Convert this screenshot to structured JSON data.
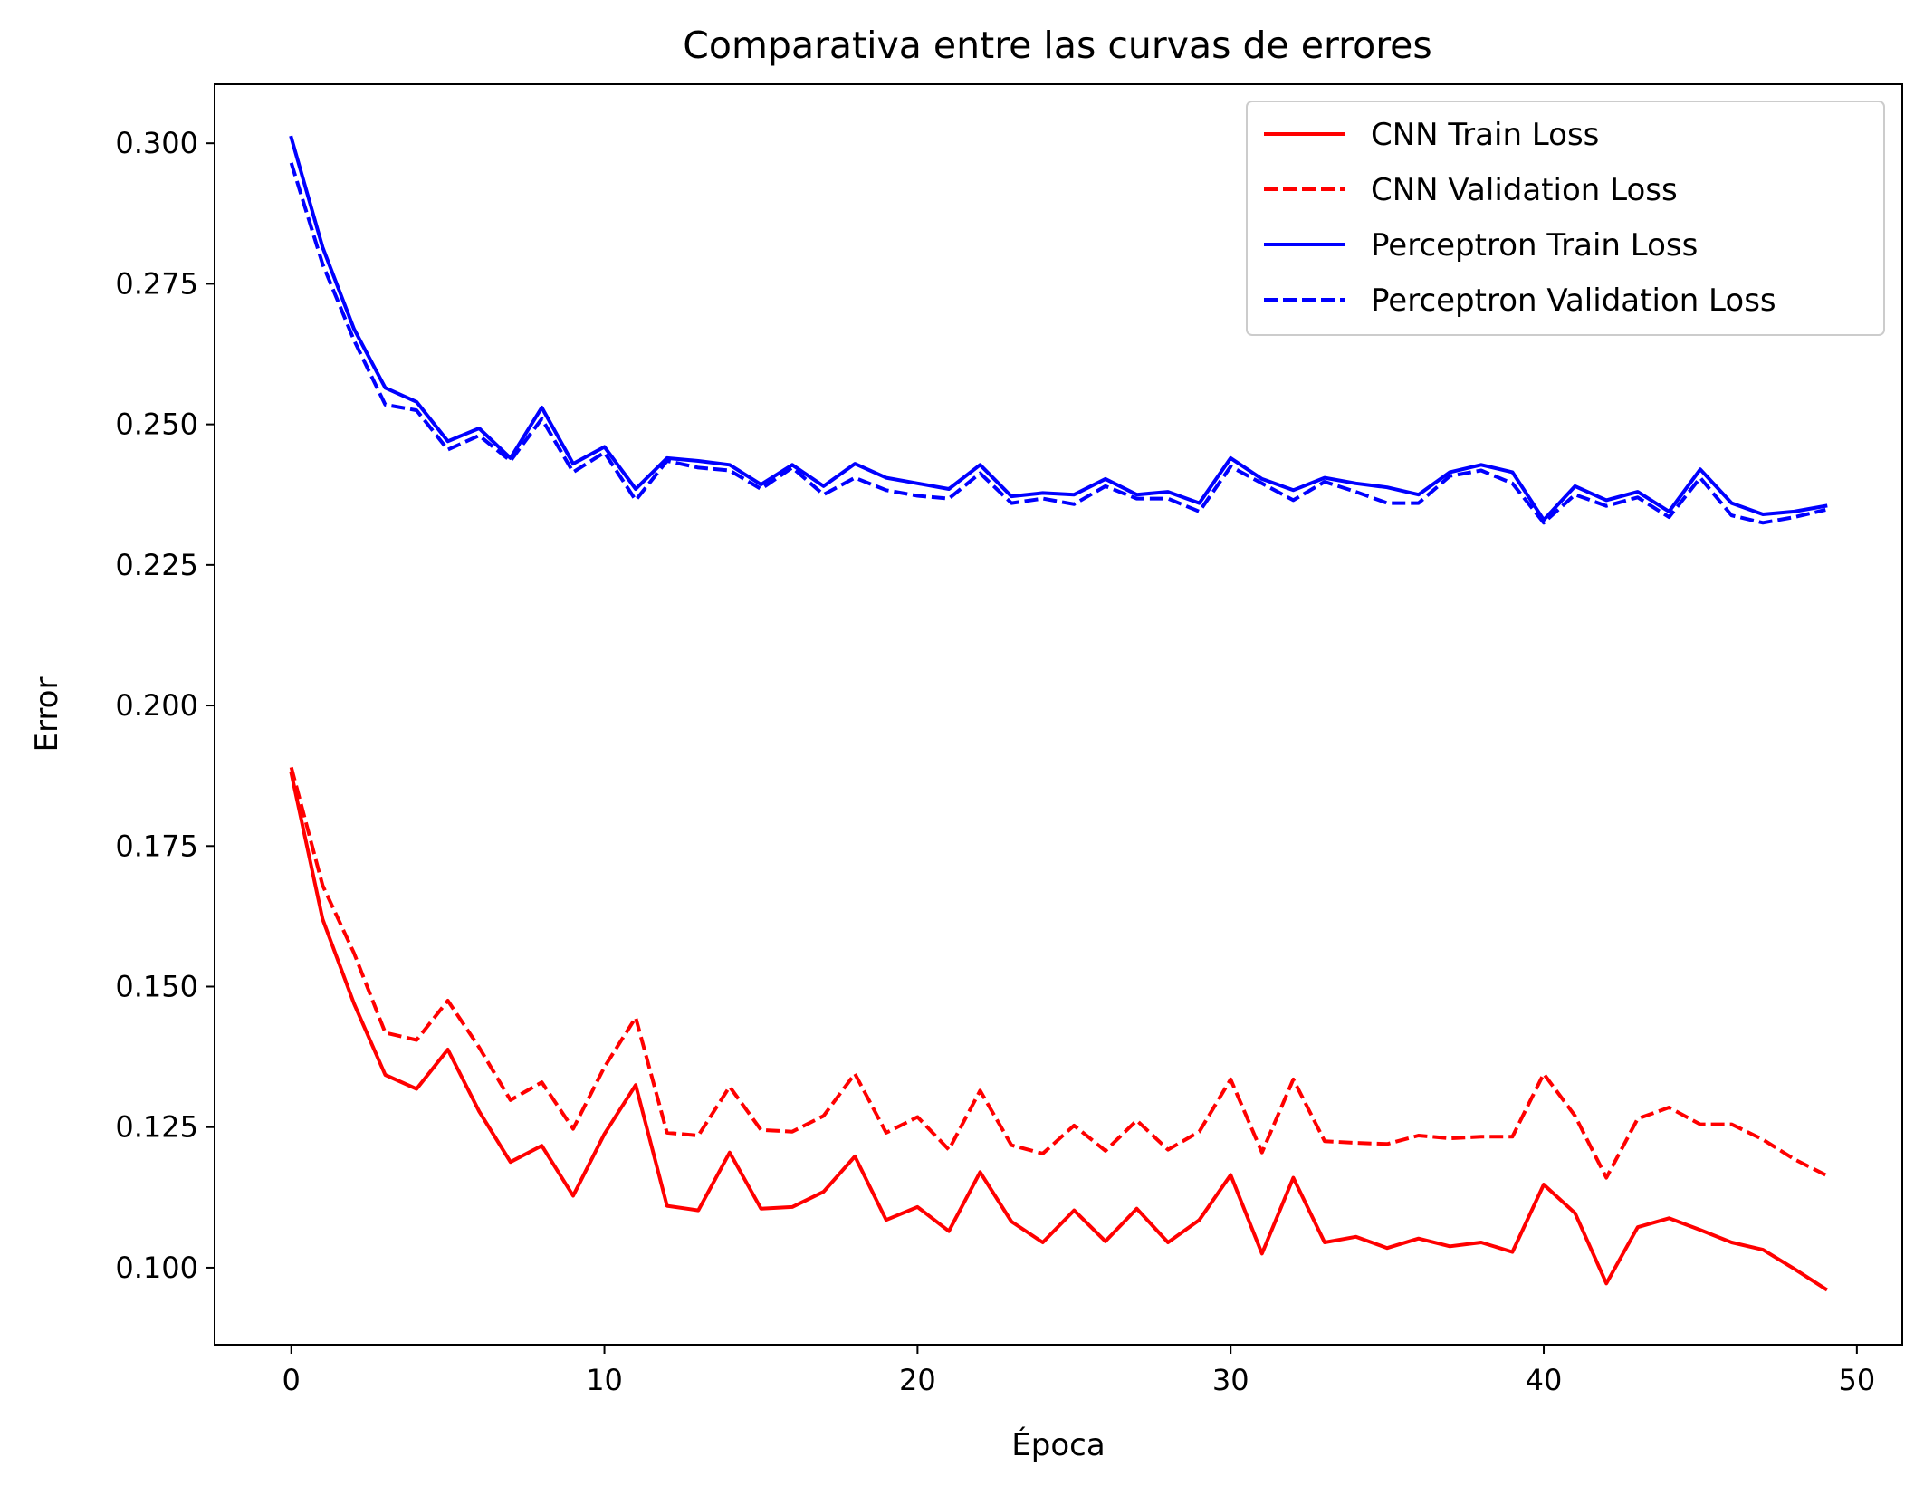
{
  "chart_data": {
    "type": "line",
    "title": "Comparativa entre las curvas de errores",
    "xlabel": "Época",
    "ylabel": "Error",
    "xlim": [
      -2.45,
      51.45
    ],
    "ylim": [
      0.0863,
      0.3105
    ],
    "xticks": [
      0,
      10,
      20,
      30,
      40,
      50
    ],
    "yticks": [
      0.1,
      0.125,
      0.15,
      0.175,
      0.2,
      0.225,
      0.25,
      0.275,
      0.3
    ],
    "ytick_labels": [
      "0.100",
      "0.125",
      "0.150",
      "0.175",
      "0.200",
      "0.225",
      "0.250",
      "0.275",
      "0.300"
    ],
    "grid": false,
    "legend_position": "top-right",
    "x": [
      0,
      1,
      2,
      3,
      4,
      5,
      6,
      7,
      8,
      9,
      10,
      11,
      12,
      13,
      14,
      15,
      16,
      17,
      18,
      19,
      20,
      21,
      22,
      23,
      24,
      25,
      26,
      27,
      28,
      29,
      30,
      31,
      32,
      33,
      34,
      35,
      36,
      37,
      38,
      39,
      40,
      41,
      42,
      43,
      44,
      45,
      46,
      47,
      48,
      49
    ],
    "series": [
      {
        "name": "CNN Train Loss",
        "color": "#ff0000",
        "style": "solid",
        "values": [
          0.188,
          0.162,
          0.147,
          0.1343,
          0.1318,
          0.1388,
          0.1278,
          0.1188,
          0.1217,
          0.1128,
          0.1238,
          0.1325,
          0.111,
          0.1102,
          0.1205,
          0.1105,
          0.1108,
          0.1135,
          0.1198,
          0.1085,
          0.1108,
          0.1065,
          0.117,
          0.1082,
          0.1045,
          0.1102,
          0.1047,
          0.1105,
          0.1045,
          0.1085,
          0.1165,
          0.1025,
          0.116,
          0.1045,
          0.1055,
          0.1035,
          0.1052,
          0.1038,
          0.1045,
          0.1028,
          0.1148,
          0.1097,
          0.0972,
          0.1072,
          0.1088,
          0.1067,
          0.1045,
          0.1032,
          0.0998,
          0.0962
        ]
      },
      {
        "name": "CNN Validation Loss",
        "color": "#ff0000",
        "style": "dashed",
        "values": [
          0.189,
          0.168,
          0.156,
          0.1418,
          0.1405,
          0.1475,
          0.1392,
          0.1298,
          0.133,
          0.1247,
          0.1357,
          0.1445,
          0.124,
          0.1235,
          0.1322,
          0.1245,
          0.1242,
          0.127,
          0.1345,
          0.124,
          0.1268,
          0.121,
          0.1315,
          0.1218,
          0.1203,
          0.1253,
          0.1208,
          0.1262,
          0.121,
          0.1242,
          0.1335,
          0.1205,
          0.1335,
          0.1225,
          0.1222,
          0.122,
          0.1235,
          0.123,
          0.1233,
          0.1233,
          0.1345,
          0.127,
          0.116,
          0.1265,
          0.1285,
          0.1255,
          0.1255,
          0.1228,
          0.1193,
          0.1165
        ]
      },
      {
        "name": "Perceptron Train Loss",
        "color": "#0000ff",
        "style": "solid",
        "values": [
          0.301,
          0.2815,
          0.267,
          0.2565,
          0.254,
          0.247,
          0.2493,
          0.244,
          0.253,
          0.243,
          0.246,
          0.2385,
          0.244,
          0.2435,
          0.2428,
          0.2393,
          0.2428,
          0.239,
          0.243,
          0.2405,
          0.2395,
          0.2385,
          0.2428,
          0.2372,
          0.2378,
          0.2375,
          0.2403,
          0.2375,
          0.238,
          0.236,
          0.244,
          0.2403,
          0.2383,
          0.2405,
          0.2395,
          0.2388,
          0.2375,
          0.2415,
          0.2428,
          0.2415,
          0.233,
          0.239,
          0.2365,
          0.238,
          0.2345,
          0.242,
          0.236,
          0.234,
          0.2345,
          0.2355
        ]
      },
      {
        "name": "Perceptron Validation Loss",
        "color": "#0000ff",
        "style": "dashed",
        "values": [
          0.2965,
          0.2785,
          0.265,
          0.2535,
          0.2525,
          0.2455,
          0.248,
          0.2435,
          0.251,
          0.2415,
          0.245,
          0.2365,
          0.2435,
          0.2423,
          0.2418,
          0.2385,
          0.2423,
          0.2375,
          0.2405,
          0.2383,
          0.2373,
          0.2368,
          0.2413,
          0.236,
          0.2368,
          0.2358,
          0.239,
          0.2368,
          0.2368,
          0.2345,
          0.2425,
          0.2395,
          0.2365,
          0.2398,
          0.238,
          0.236,
          0.236,
          0.2408,
          0.2418,
          0.2395,
          0.2325,
          0.2375,
          0.2355,
          0.237,
          0.2335,
          0.2405,
          0.2338,
          0.2325,
          0.2335,
          0.2348
        ]
      }
    ]
  }
}
